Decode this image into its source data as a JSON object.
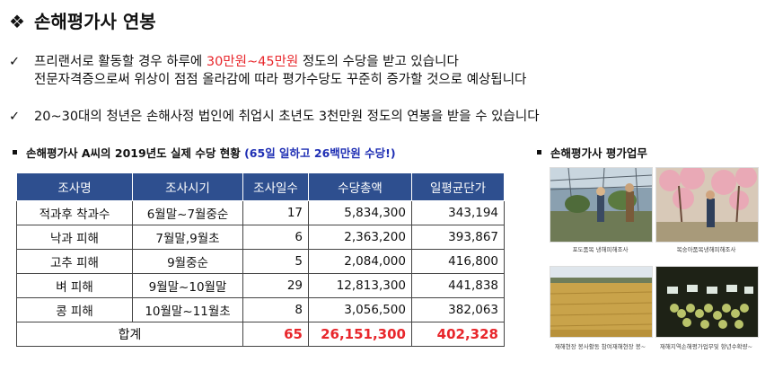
{
  "title": {
    "symbol": "❖",
    "text": "손해평가사 연봉"
  },
  "bullets": [
    {
      "mark": "✓",
      "line1_pre": "프리랜서로 활동할 경우 하루에 ",
      "line1_highlight": "30만원~45만원",
      "line1_post": " 정도의 수당을 받고 있습니다",
      "line2": "전문자격증으로써 위상이 점점 올라감에 따라 평가수당도 꾸준히 증가할 것으로 예상됩니다"
    },
    {
      "mark": "✓",
      "line1_pre": "20~30대의 청년은 손해사정 법인에 취업시 초년도 3천만원 정도의 연봉을 받을 수 있습니다"
    }
  ],
  "table_section": {
    "heading": "손해평가사 A씨의 2019년도 실제 수당 현황",
    "heading_highlight": "(65일 일하고 26백만원 수당!)",
    "columns": [
      "조사명",
      "조사시기",
      "조사일수",
      "수당총액",
      "일평균단가"
    ],
    "rows": [
      [
        "적과후 착과수",
        "6월말~7월중순",
        "17",
        "5,834,300",
        "343,194"
      ],
      [
        "낙과 피해",
        "7월말,9월초",
        "6",
        "2,363,200",
        "393,867"
      ],
      [
        "고추 피해",
        "9월중순",
        "5",
        "2,084,000",
        "416,800"
      ],
      [
        "벼 피해",
        "9월말~10월말",
        "29",
        "12,813,300",
        "441,838"
      ],
      [
        "콩 피해",
        "10월말~11월초",
        "8",
        "3,056,500",
        "382,063"
      ]
    ],
    "total": {
      "label": "합계",
      "days": "65",
      "sum": "26,151,300",
      "avg": "402,328"
    }
  },
  "photo_section": {
    "heading": "손해평가사 평가업무",
    "captions": [
      "포도품목 냉해피해조사",
      "복숭아품목냉해피해조사",
      "재해현장 봉사활동 참여재해현장 봉~",
      "재해지역손해평가업무및 항년수확량~"
    ]
  },
  "colors": {
    "table_header": "#2e4f8f",
    "highlight_red": "#e8262b",
    "highlight_blue": "#1f2fb4"
  }
}
